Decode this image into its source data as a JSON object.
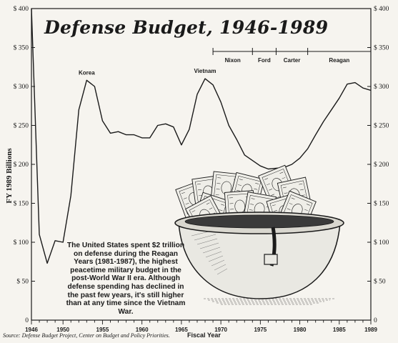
{
  "title": "Defense Budget, 1946-1989",
  "blurb": "The United States spent $2 trillion on defense during the Reagan Years (1981-1987), the highest peacetime military budget in the post-World War II era. Although defense spending has declined in the past few years, it's still higher than at any time since the Vietnam War.",
  "source": "Source: Defense Budget Project, Center on Budget and Policy Priorities.",
  "chart_data": {
    "type": "line",
    "xlabel": "Fiscal Year",
    "ylabel": "FY 1989 Billions",
    "xlim": [
      1946,
      1989
    ],
    "ylim": [
      0,
      400
    ],
    "x_ticks": [
      "1946",
      "1950",
      "1955",
      "1960",
      "1965",
      "1970",
      "1975",
      "1980",
      "1985",
      "1989"
    ],
    "y_ticks_left": [
      "0",
      "$  50",
      "$ 100",
      "$ 150",
      "$ 200",
      "$ 250",
      "$ 300",
      "$ 350",
      "$ 400"
    ],
    "y_ticks_right": [
      "0",
      "$ 50",
      "$ 100",
      "$ 150",
      "$ 200",
      "$ 250",
      "$ 300",
      "$ 350",
      "$ 400"
    ],
    "series": [
      {
        "x": [
          1946,
          1947,
          1948,
          1949,
          1950,
          1951,
          1952,
          1953,
          1954,
          1955,
          1956,
          1957,
          1958,
          1959,
          1960,
          1961,
          1962,
          1963,
          1964,
          1965,
          1966,
          1967,
          1968,
          1969,
          1970,
          1971,
          1972,
          1973,
          1974,
          1975,
          1976,
          1977,
          1978,
          1979,
          1980,
          1981,
          1982,
          1983,
          1984,
          1985,
          1986,
          1987,
          1988,
          1989
        ],
        "values": [
          400,
          110,
          73,
          102,
          100,
          160,
          270,
          308,
          300,
          256,
          240,
          242,
          238,
          238,
          234,
          234,
          250,
          252,
          248,
          225,
          245,
          290,
          310,
          302,
          280,
          250,
          232,
          212,
          205,
          198,
          194,
          195,
          196,
          200,
          208,
          220,
          238,
          255,
          270,
          285,
          303,
          305,
          298,
          295
        ]
      }
    ],
    "annotations": [
      "Korea",
      "Vietnam"
    ],
    "eras": [
      "Nixon",
      "Ford",
      "Carter",
      "Reagan"
    ],
    "grid": false
  }
}
